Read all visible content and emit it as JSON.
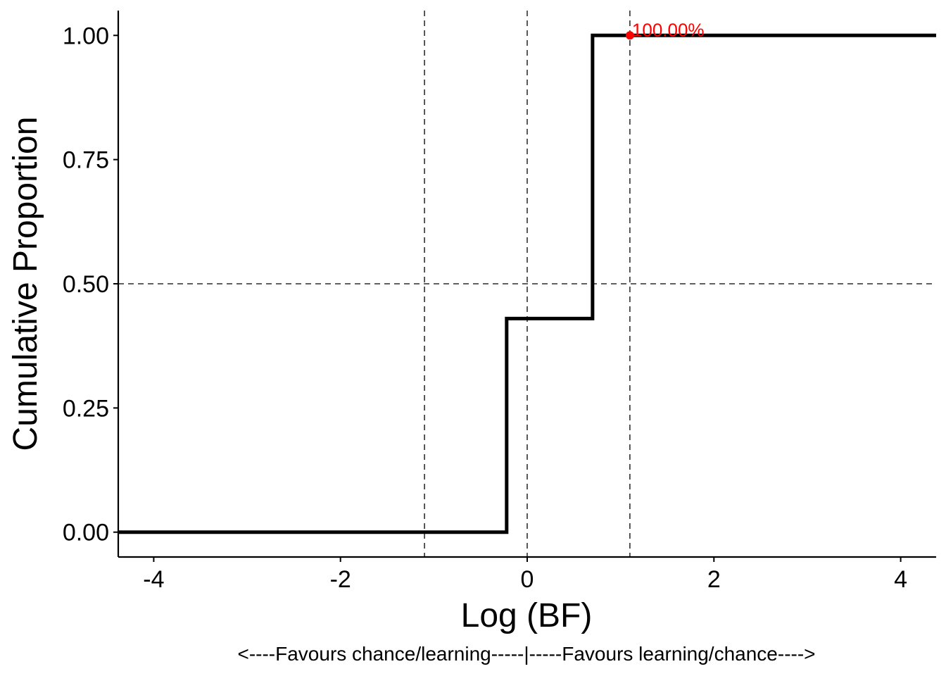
{
  "chart_data": {
    "type": "line",
    "step": true,
    "title": "",
    "xlabel": "Log (BF)",
    "ylabel": "Cumulative Proportion",
    "caption": "<----Favours chance/learning-----|-----Favours learning/chance---->",
    "xlim": [
      -4.38,
      4.38
    ],
    "ylim": [
      -0.05,
      1.05
    ],
    "x_ticks": [
      -4,
      -2,
      0,
      2,
      4
    ],
    "x_tick_labels": [
      "-4",
      "-2",
      "0",
      "2",
      "4"
    ],
    "y_ticks": [
      0,
      0.25,
      0.5,
      0.75,
      1
    ],
    "y_tick_labels": [
      "0.00",
      "0.25",
      "0.50",
      "0.75",
      "1.00"
    ],
    "grid": false,
    "series": [
      {
        "color": "#000000",
        "x": [
          -4.38,
          -0.22,
          -0.22,
          0.7,
          0.7,
          4.38
        ],
        "y": [
          0,
          0,
          0.43,
          0.43,
          1,
          1
        ]
      }
    ],
    "reference_lines": {
      "vertical": [
        -1.1,
        0,
        1.1
      ],
      "horizontal": [
        0.5
      ],
      "style": "dashed",
      "color": "#000000"
    },
    "highlight_point": {
      "x": 1.1,
      "y": 1,
      "label": "100.00%",
      "color": "#ff0000"
    }
  }
}
